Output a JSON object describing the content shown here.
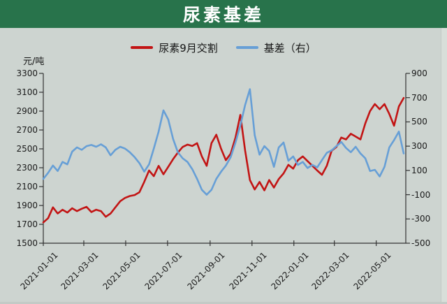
{
  "header": {
    "title": "尿素基差",
    "bg_color": "#28734b",
    "text_color": "#ffffff"
  },
  "legend": [
    {
      "label": "尿素9月交割",
      "color": "#c21414"
    },
    {
      "label": "基差（右）",
      "color": "#679fd6"
    }
  ],
  "chart_data": {
    "type": "line",
    "title": "尿素基差",
    "unit_left": "元/吨",
    "background_color": "#cdd4d0",
    "axis_color": "#333333",
    "grid": false,
    "legend_position": "top-center",
    "left_axis": {
      "min": 1500,
      "max": 3300,
      "ticks": [
        3300,
        3100,
        2900,
        2700,
        2500,
        2300,
        2100,
        1900,
        1700,
        1500
      ]
    },
    "right_axis": {
      "min": -500,
      "max": 900,
      "ticks": [
        900,
        700,
        500,
        300,
        100,
        -100,
        -300,
        -500
      ]
    },
    "x_ticks": [
      "2021-01-01",
      "2021-03-01",
      "2021-05-01",
      "2021-07-01",
      "2021-09-01",
      "2021-11-01",
      "2022-01-01",
      "2022-03-01",
      "2022-05-01"
    ],
    "x_tick_day_offsets": [
      0,
      59,
      120,
      181,
      243,
      304,
      365,
      424,
      485
    ],
    "total_days": 525,
    "sampling": "weekly points from 2021-01-01 to 2022-06-10",
    "series": [
      {
        "name": "尿素9月交割",
        "axis": "left",
        "color": "#c21414",
        "values": [
          1720,
          1765,
          1880,
          1815,
          1855,
          1825,
          1870,
          1840,
          1865,
          1885,
          1830,
          1855,
          1840,
          1780,
          1815,
          1880,
          1945,
          1980,
          2000,
          2010,
          2040,
          2150,
          2270,
          2210,
          2320,
          2230,
          2310,
          2390,
          2460,
          2520,
          2545,
          2530,
          2560,
          2420,
          2320,
          2560,
          2650,
          2500,
          2380,
          2450,
          2620,
          2860,
          2480,
          2170,
          2070,
          2150,
          2060,
          2170,
          2090,
          2180,
          2240,
          2330,
          2290,
          2380,
          2420,
          2370,
          2320,
          2270,
          2225,
          2320,
          2480,
          2520,
          2620,
          2600,
          2660,
          2630,
          2600,
          2770,
          2900,
          2975,
          2920,
          2975,
          2870,
          2745,
          2950,
          3040
        ]
      },
      {
        "name": "基差（右）",
        "axis": "right",
        "color": "#679fd6",
        "values": [
          30,
          80,
          140,
          95,
          170,
          150,
          255,
          290,
          270,
          300,
          310,
          295,
          315,
          290,
          225,
          270,
          295,
          280,
          250,
          210,
          160,
          90,
          150,
          280,
          420,
          595,
          520,
          360,
          250,
          200,
          170,
          110,
          30,
          -60,
          -100,
          -60,
          30,
          90,
          140,
          210,
          330,
          470,
          640,
          770,
          390,
          230,
          300,
          260,
          130,
          290,
          330,
          180,
          215,
          145,
          170,
          120,
          145,
          125,
          185,
          245,
          265,
          300,
          335,
          285,
          250,
          295,
          240,
          200,
          95,
          105,
          50,
          130,
          290,
          350,
          420,
          240
        ]
      }
    ]
  }
}
